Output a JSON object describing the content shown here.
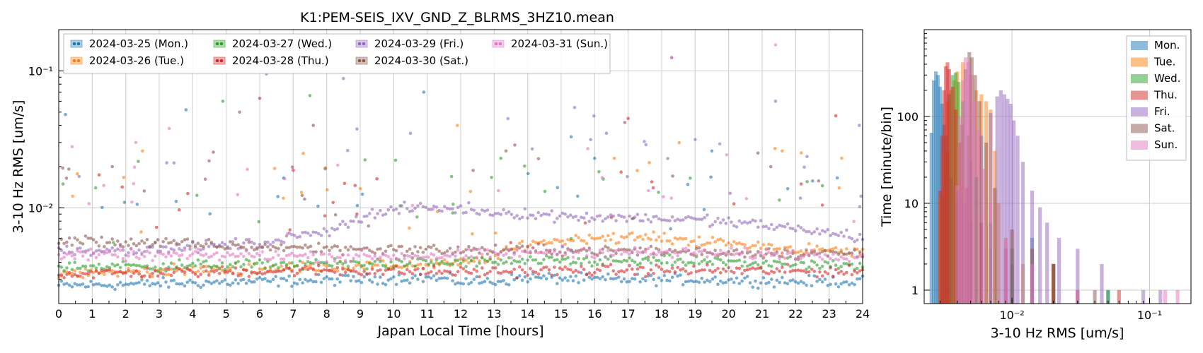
{
  "colors": {
    "Mon": "#1f77b4",
    "Tue": "#ff7f0e",
    "Wed": "#2ca02c",
    "Thu": "#d62728",
    "Fri": "#9467bd",
    "Sat": "#8c564b",
    "Sun": "#e377c2",
    "grid": "#cccccc",
    "frame": "#000000"
  },
  "chart_data": [
    {
      "type": "scatter",
      "title": "K1:PEM-SEIS_IXV_GND_Z_BLRMS_3HZ10.mean",
      "xlabel": "Japan Local Time [hours]",
      "ylabel": "3-10 Hz RMS [um/s]",
      "xlim": [
        0,
        24
      ],
      "ylim": [
        0.002,
        0.2
      ],
      "yscale": "log",
      "grid": true,
      "x_ticks": [
        "0",
        "1",
        "2",
        "3",
        "4",
        "5",
        "6",
        "7",
        "8",
        "9",
        "10",
        "11",
        "12",
        "13",
        "14",
        "15",
        "16",
        "17",
        "18",
        "19",
        "20",
        "21",
        "22",
        "23",
        "24"
      ],
      "y_ticks": [
        {
          "value": 0.01,
          "label": "10⁻²"
        },
        {
          "value": 0.1,
          "label": "10⁻¹"
        }
      ],
      "legend_position": "top-left",
      "legend_columns": 4,
      "series": [
        {
          "name": "2024-03-25 (Mon.)",
          "key": "Mon",
          "baseline": [
            [
              0,
              0.0027
            ],
            [
              3,
              0.0028
            ],
            [
              6,
              0.0029
            ],
            [
              9,
              0.003
            ],
            [
              11,
              0.0031
            ],
            [
              12,
              0.0029
            ],
            [
              13,
              0.0029
            ],
            [
              14,
              0.0031
            ],
            [
              16,
              0.003
            ],
            [
              19,
              0.003
            ],
            [
              22,
              0.0029
            ],
            [
              24,
              0.0029
            ]
          ],
          "outliers": [
            [
              0.2,
              0.048
            ],
            [
              3.8,
              0.052
            ],
            [
              10.9,
              0.07
            ],
            [
              15.3,
              0.033
            ],
            [
              16,
              0.023
            ],
            [
              19.5,
              0.026
            ]
          ]
        },
        {
          "name": "2024-03-26 (Tue.)",
          "key": "Tue",
          "baseline": [
            [
              0,
              0.0033
            ],
            [
              4,
              0.0035
            ],
            [
              8,
              0.0037
            ],
            [
              12,
              0.0039
            ],
            [
              13,
              0.0044
            ],
            [
              14,
              0.0055
            ],
            [
              16,
              0.0061
            ],
            [
              18,
              0.006
            ],
            [
              20,
              0.0055
            ],
            [
              22,
              0.005
            ],
            [
              24,
              0.0047
            ]
          ],
          "outliers": [
            [
              2.5,
              0.026
            ],
            [
              7.3,
              0.025
            ],
            [
              11.9,
              0.04
            ],
            [
              21.6,
              0.026
            ],
            [
              23.3,
              0.014
            ]
          ]
        },
        {
          "name": "2024-03-27 (Wed.)",
          "key": "Wed",
          "baseline": [
            [
              0,
              0.0037
            ],
            [
              4,
              0.0038
            ],
            [
              8,
              0.0039
            ],
            [
              12,
              0.004
            ],
            [
              16,
              0.0041
            ],
            [
              20,
              0.004
            ],
            [
              24,
              0.0037
            ]
          ],
          "outliers": [
            [
              1.1,
              0.014
            ],
            [
              4.9,
              0.06
            ],
            [
              7.5,
              0.066
            ],
            [
              13.2,
              0.023
            ],
            [
              22.8,
              0.0145
            ]
          ]
        },
        {
          "name": "2024-03-28 (Thu.)",
          "key": "Thu",
          "baseline": [
            [
              0,
              0.0033
            ],
            [
              4,
              0.0034
            ],
            [
              8,
              0.0035
            ],
            [
              12,
              0.0034
            ],
            [
              16,
              0.0035
            ],
            [
              20,
              0.0035
            ],
            [
              24,
              0.0034
            ]
          ],
          "outliers": [
            [
              6.0,
              0.063
            ],
            [
              8.9,
              0.009
            ],
            [
              17.0,
              0.045
            ],
            [
              23.2,
              0.047
            ]
          ]
        },
        {
          "name": "2024-03-29 (Fri.)",
          "key": "Fri",
          "baseline": [
            [
              0,
              0.0049
            ],
            [
              3,
              0.005
            ],
            [
              6,
              0.0055
            ],
            [
              8,
              0.0068
            ],
            [
              9,
              0.0085
            ],
            [
              10,
              0.0097
            ],
            [
              11,
              0.01
            ],
            [
              12,
              0.0098
            ],
            [
              13,
              0.0093
            ],
            [
              15,
              0.0087
            ],
            [
              17,
              0.0085
            ],
            [
              19,
              0.0082
            ],
            [
              21,
              0.0075
            ],
            [
              23,
              0.0066
            ],
            [
              24,
              0.006
            ]
          ],
          "outliers": [
            [
              6.2,
              0.095
            ],
            [
              8.5,
              0.088
            ],
            [
              10.5,
              0.035
            ],
            [
              15.4,
              0.054
            ],
            [
              18.3,
              0.125
            ],
            [
              21.4,
              0.06
            ],
            [
              23.9,
              0.04
            ]
          ]
        },
        {
          "name": "2024-03-30 (Sat.)",
          "key": "Sat",
          "baseline": [
            [
              0,
              0.0058
            ],
            [
              3,
              0.0055
            ],
            [
              6,
              0.0052
            ],
            [
              9,
              0.005
            ],
            [
              12,
              0.0049
            ],
            [
              15,
              0.0049
            ],
            [
              18,
              0.0048
            ],
            [
              21,
              0.0047
            ],
            [
              24,
              0.0046
            ]
          ],
          "outliers": [
            [
              1.6,
              0.02
            ],
            [
              5.4,
              0.05
            ],
            [
              7.6,
              0.04
            ],
            [
              16.9,
              0.042
            ]
          ]
        },
        {
          "name": "2024-03-31 (Sun.)",
          "key": "Sun",
          "baseline": [
            [
              0,
              0.0045
            ],
            [
              3,
              0.0045
            ],
            [
              6,
              0.0045
            ],
            [
              9,
              0.0044
            ],
            [
              12,
              0.0045
            ],
            [
              15,
              0.0048
            ],
            [
              18,
              0.0047
            ],
            [
              21,
              0.0046
            ],
            [
              24,
              0.0045
            ]
          ],
          "outliers": [
            [
              0.4,
              0.028
            ],
            [
              2.3,
              0.03
            ],
            [
              3.3,
              0.038
            ],
            [
              18.3,
              0.125
            ],
            [
              21.4,
              0.155
            ]
          ]
        }
      ]
    },
    {
      "type": "histogram",
      "xlabel": "3-10 Hz RMS [um/s]",
      "ylabel": "Time [minute/bin]",
      "xscale": "log",
      "yscale": "log",
      "xlim": [
        0.0023,
        0.2
      ],
      "ylim": [
        0.7,
        1000
      ],
      "grid": true,
      "x_ticks": [
        {
          "value": 0.01,
          "label": "10⁻²"
        },
        {
          "value": 0.1,
          "label": "10⁻¹"
        }
      ],
      "y_ticks": [
        {
          "value": 1,
          "label": "1"
        },
        {
          "value": 10,
          "label": "10"
        },
        {
          "value": 100,
          "label": "100"
        }
      ],
      "legend_position": "top-right",
      "series": [
        {
          "name": "Mon.",
          "key": "Mon",
          "bins": [
            [
              0.0026,
              65
            ],
            [
              0.0027,
              260
            ],
            [
              0.0028,
              330
            ],
            [
              0.0029,
              300
            ],
            [
              0.003,
              220
            ],
            [
              0.0031,
              140
            ],
            [
              0.0032,
              80
            ],
            [
              0.0034,
              40
            ],
            [
              0.0036,
              20
            ],
            [
              0.004,
              10
            ],
            [
              0.005,
              6
            ],
            [
              0.007,
              3
            ],
            [
              0.01,
              2
            ],
            [
              0.014,
              4
            ],
            [
              0.02,
              2
            ],
            [
              0.03,
              1
            ],
            [
              0.05,
              1
            ]
          ]
        },
        {
          "name": "Tue.",
          "key": "Tue",
          "bins": [
            [
              0.003,
              12
            ],
            [
              0.0032,
              40
            ],
            [
              0.0034,
              150
            ],
            [
              0.0036,
              200
            ],
            [
              0.0038,
              260
            ],
            [
              0.004,
              330
            ],
            [
              0.0044,
              420
            ],
            [
              0.005,
              300
            ],
            [
              0.0055,
              200
            ],
            [
              0.006,
              180
            ],
            [
              0.0065,
              150
            ],
            [
              0.007,
              120
            ],
            [
              0.0075,
              40
            ],
            [
              0.008,
              10
            ],
            [
              0.009,
              4
            ],
            [
              0.012,
              2
            ],
            [
              0.02,
              1
            ],
            [
              0.03,
              1
            ]
          ]
        },
        {
          "name": "Wed.",
          "key": "Wed",
          "bins": [
            [
              0.0031,
              12
            ],
            [
              0.0033,
              60
            ],
            [
              0.0035,
              180
            ],
            [
              0.0037,
              300
            ],
            [
              0.0039,
              320
            ],
            [
              0.0041,
              250
            ],
            [
              0.0044,
              150
            ],
            [
              0.0048,
              60
            ],
            [
              0.0055,
              20
            ],
            [
              0.007,
              6
            ],
            [
              0.01,
              3
            ],
            [
              0.02,
              2
            ],
            [
              0.05,
              1
            ]
          ]
        },
        {
          "name": "Thu.",
          "key": "Thu",
          "bins": [
            [
              0.003,
              14
            ],
            [
              0.0031,
              60
            ],
            [
              0.0032,
              200
            ],
            [
              0.0033,
              380
            ],
            [
              0.0034,
              420
            ],
            [
              0.0035,
              350
            ],
            [
              0.0037,
              220
            ],
            [
              0.0039,
              120
            ],
            [
              0.0042,
              50
            ],
            [
              0.0047,
              15
            ],
            [
              0.006,
              6
            ],
            [
              0.009,
              3
            ],
            [
              0.02,
              2
            ],
            [
              0.06,
              1
            ]
          ]
        },
        {
          "name": "Fri.",
          "key": "Fri",
          "bins": [
            [
              0.0045,
              10
            ],
            [
              0.005,
              30
            ],
            [
              0.006,
              60
            ],
            [
              0.007,
              110
            ],
            [
              0.0078,
              170
            ],
            [
              0.0083,
              200
            ],
            [
              0.0088,
              180
            ],
            [
              0.0093,
              160
            ],
            [
              0.0098,
              140
            ],
            [
              0.0103,
              90
            ],
            [
              0.011,
              60
            ],
            [
              0.012,
              30
            ],
            [
              0.014,
              14
            ],
            [
              0.016,
              9
            ],
            [
              0.018,
              6
            ],
            [
              0.022,
              4
            ],
            [
              0.03,
              3
            ],
            [
              0.045,
              2
            ],
            [
              0.09,
              1
            ],
            [
              0.12,
              1
            ]
          ]
        },
        {
          "name": "Sat.",
          "key": "Sat",
          "bins": [
            [
              0.004,
              14
            ],
            [
              0.0043,
              80
            ],
            [
              0.0046,
              350
            ],
            [
              0.0049,
              550
            ],
            [
              0.0051,
              480
            ],
            [
              0.0054,
              300
            ],
            [
              0.0058,
              150
            ],
            [
              0.0065,
              50
            ],
            [
              0.0075,
              15
            ],
            [
              0.01,
              5
            ],
            [
              0.014,
              3
            ],
            [
              0.02,
              2
            ],
            [
              0.04,
              1
            ]
          ]
        },
        {
          "name": "Sun.",
          "key": "Sun",
          "bins": [
            [
              0.004,
              16
            ],
            [
              0.0042,
              100
            ],
            [
              0.0044,
              260
            ],
            [
              0.0046,
              480
            ],
            [
              0.0048,
              420
            ],
            [
              0.005,
              300
            ],
            [
              0.0053,
              150
            ],
            [
              0.0057,
              70
            ],
            [
              0.0062,
              25
            ],
            [
              0.007,
              10
            ],
            [
              0.009,
              4
            ],
            [
              0.014,
              2
            ],
            [
              0.03,
              1
            ],
            [
              0.13,
              1
            ],
            [
              0.16,
              1
            ]
          ]
        }
      ]
    }
  ]
}
